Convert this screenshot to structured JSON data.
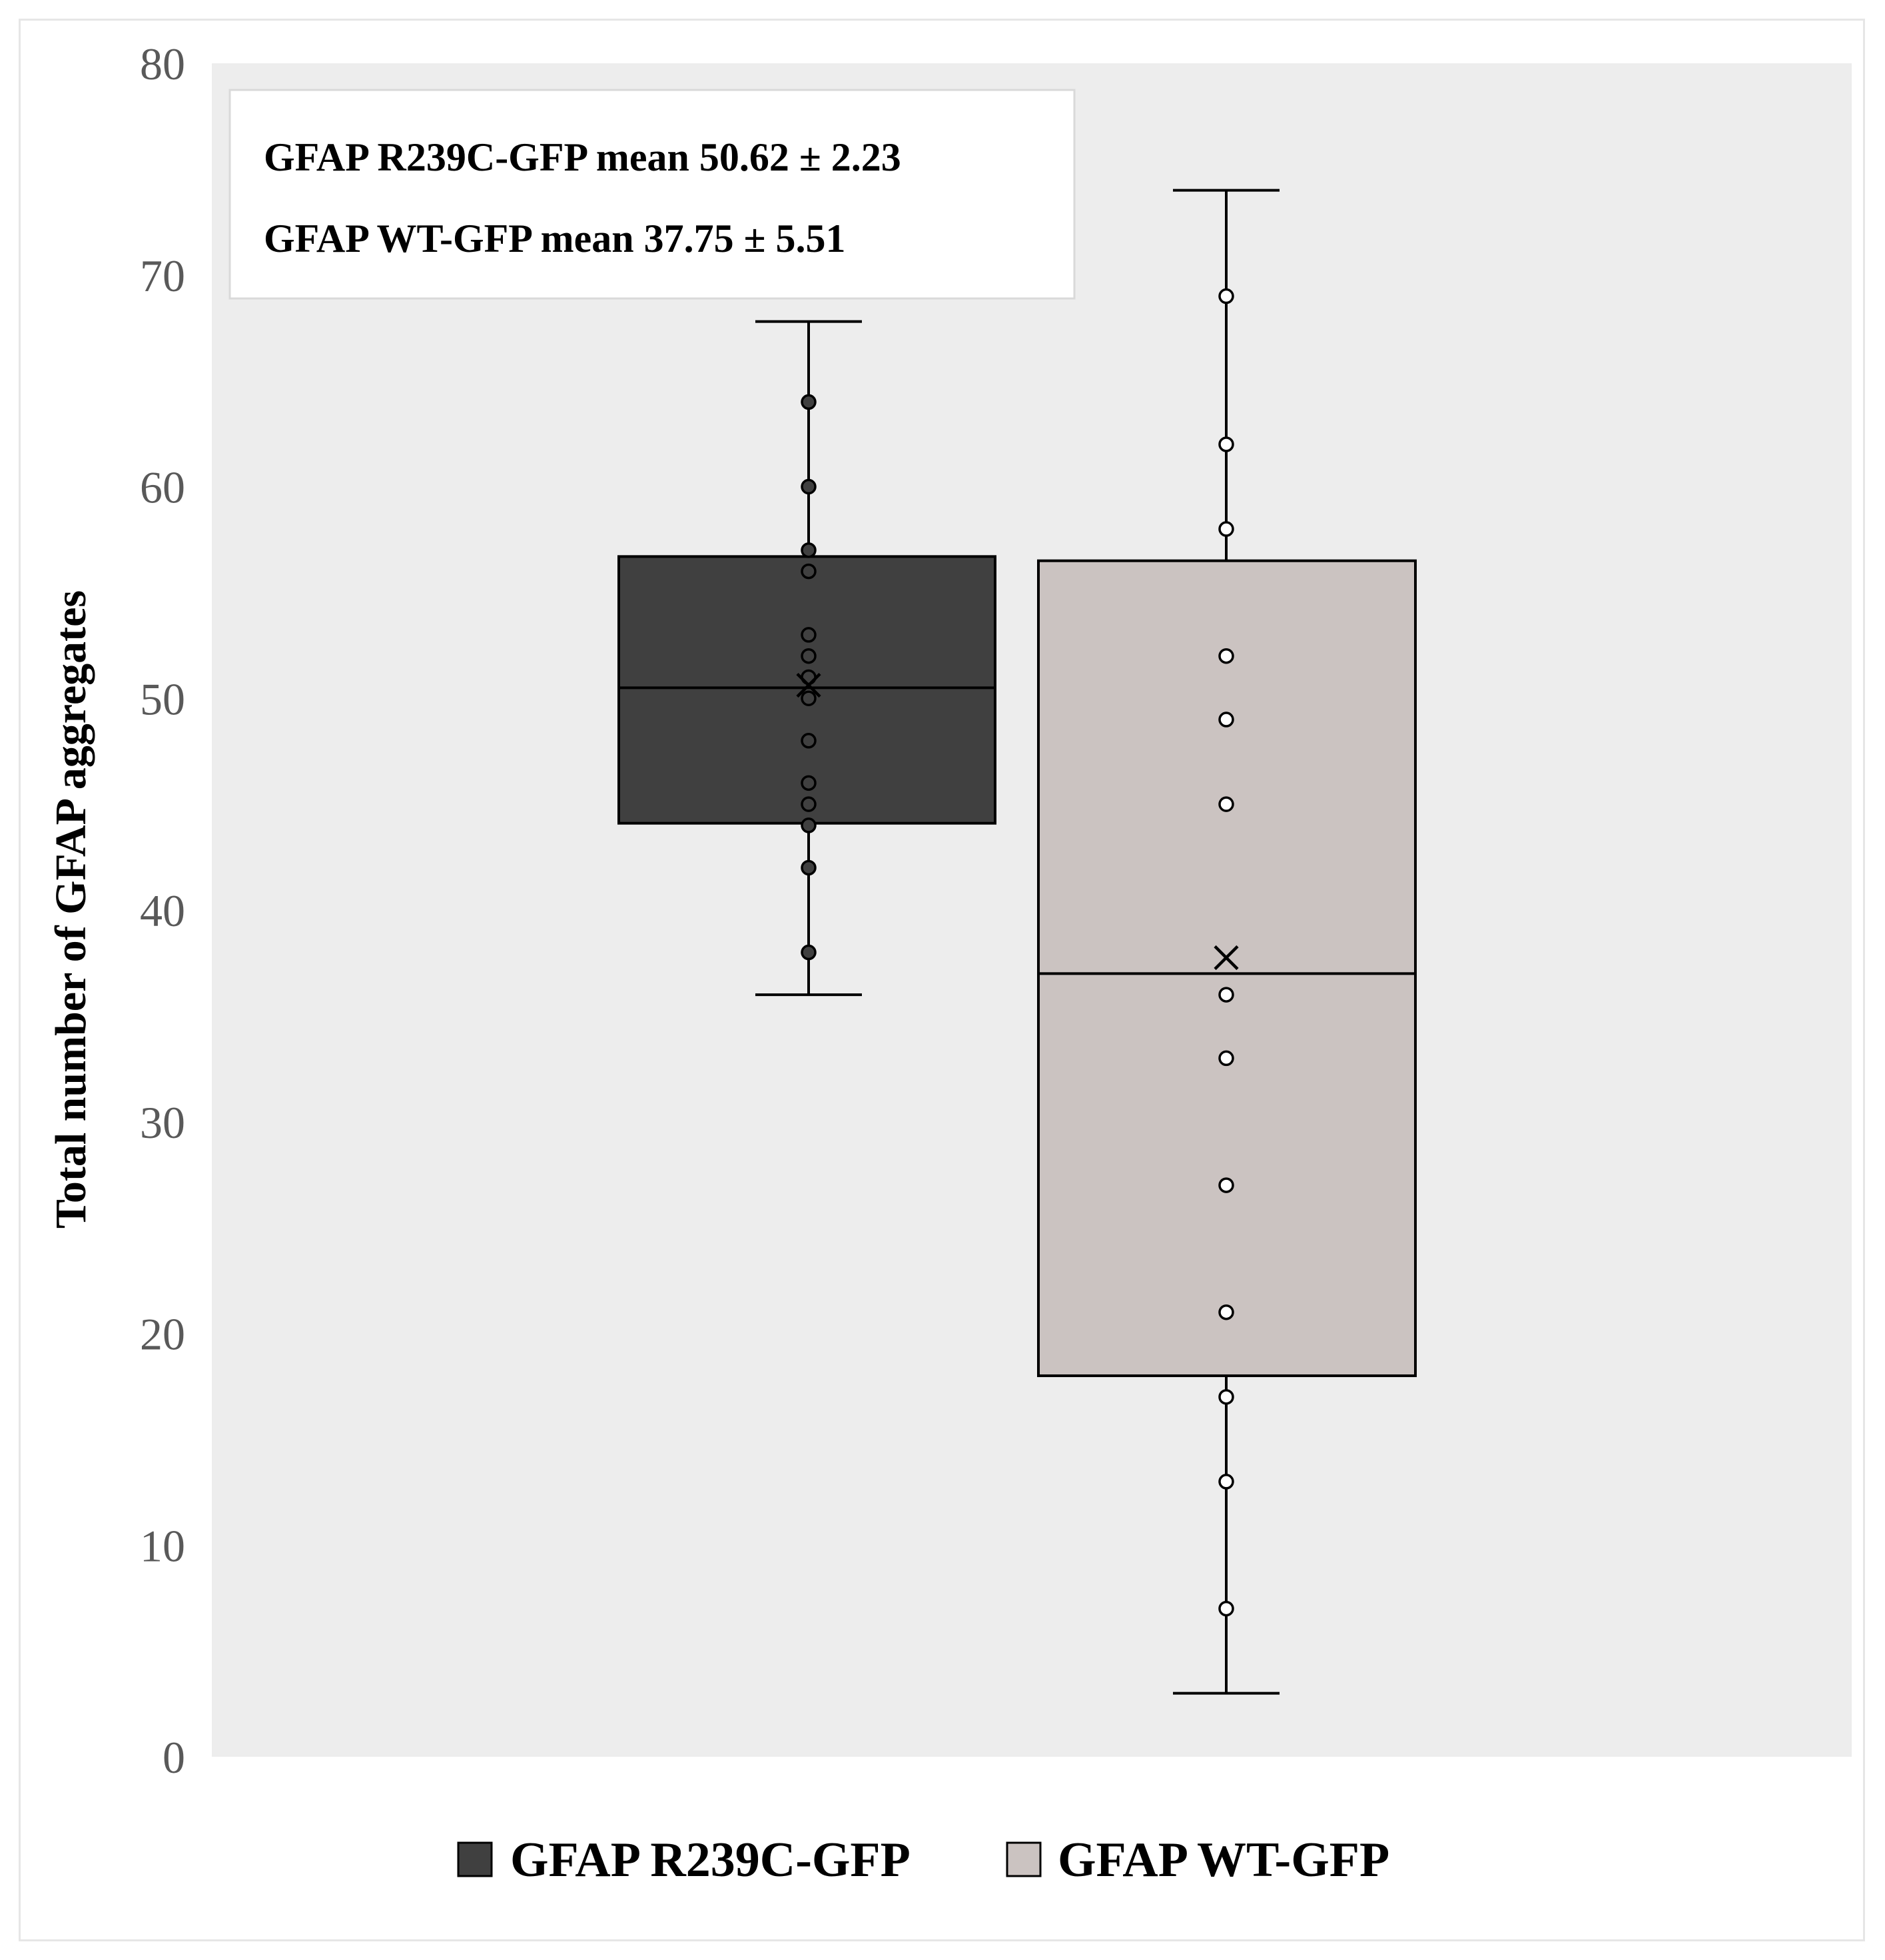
{
  "chart_data": {
    "type": "box",
    "title": "",
    "ylabel": "Total number of GFAP aggregates",
    "xlabel": "",
    "ylim": [
      0,
      80
    ],
    "yticks": [
      0,
      10,
      20,
      30,
      40,
      50,
      60,
      70,
      80
    ],
    "yticks_labels": [
      "0",
      "10",
      "20",
      "30",
      "40",
      "50",
      "60",
      "70",
      "80"
    ],
    "grid": false,
    "legend_position": "bottom",
    "background": "#ededed",
    "annotations": [
      "GFAP R239C-GFP  mean 50.62 ± 2.23",
      "GFAP WT-GFP mean 37.75 ± 5.51"
    ],
    "series": [
      {
        "name": "GFAP R239C-GFP",
        "color": "#404040",
        "point_fill": "#404040",
        "min": 36,
        "q1": 44.1,
        "median": 50.5,
        "q3": 56.7,
        "max": 67.8,
        "mean": 50.62,
        "points": [
          64,
          60,
          57,
          56,
          53,
          52,
          51,
          50,
          48,
          46,
          45,
          44,
          42,
          38
        ]
      },
      {
        "name": "GFAP WT-GFP",
        "color": "#cbc3c1",
        "point_fill": "#ffffff",
        "min": 3,
        "q1": 18,
        "median": 37,
        "q3": 56.5,
        "max": 74,
        "mean": 37.75,
        "points": [
          69,
          62,
          58,
          52,
          49,
          45,
          36,
          33,
          27,
          21,
          17,
          13,
          7
        ]
      }
    ]
  }
}
